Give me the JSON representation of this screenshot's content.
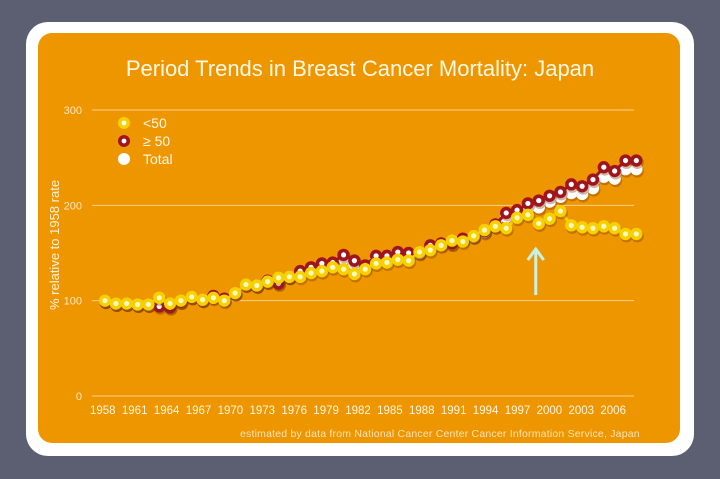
{
  "chart_data": {
    "type": "line",
    "title": "Period Trends in Breast Cancer Mortality: Japan",
    "xlabel": "",
    "ylabel": "% relative to 1958 rate",
    "ylim": [
      0,
      300
    ],
    "yticks": [
      "0",
      "100",
      "200",
      "300"
    ],
    "xticks": [
      "1958",
      "1961",
      "1964",
      "1967",
      "1970",
      "1973",
      "1976",
      "1979",
      "1982",
      "1985",
      "1988",
      "1991",
      "1994",
      "1997",
      "2000",
      "2003",
      "2006"
    ],
    "grid": true,
    "legend_position": "top-left",
    "x": [
      1958,
      1959,
      1960,
      1961,
      1962,
      1963,
      1964,
      1965,
      1966,
      1967,
      1968,
      1969,
      1970,
      1971,
      1972,
      1973,
      1974,
      1975,
      1976,
      1977,
      1978,
      1979,
      1980,
      1981,
      1982,
      1983,
      1984,
      1985,
      1986,
      1987,
      1988,
      1989,
      1990,
      1991,
      1992,
      1993,
      1994,
      1995,
      1996,
      1997,
      1998,
      1999,
      2000,
      2001,
      2002,
      2003,
      2004,
      2005,
      2006,
      2007
    ],
    "series": [
      {
        "name": "<50",
        "color": "#f7d000",
        "values": [
          100,
          97,
          97,
          96,
          96,
          103,
          97,
          100,
          104,
          101,
          103,
          100,
          108,
          117,
          116,
          120,
          124,
          125,
          125,
          129,
          131,
          135,
          133,
          128,
          133,
          139,
          140,
          143,
          142,
          151,
          153,
          158,
          163,
          162,
          168,
          174,
          178,
          176,
          187,
          190,
          181,
          186,
          194,
          179,
          177,
          176,
          178,
          176,
          170,
          170
        ]
      },
      {
        "name": "≥ 50",
        "color": "#a0151d",
        "values": [
          100,
          97,
          97,
          96,
          96,
          94,
          93,
          99,
          104,
          101,
          105,
          102,
          108,
          117,
          116,
          121,
          118,
          125,
          131,
          135,
          139,
          140,
          148,
          142,
          137,
          147,
          147,
          151,
          150,
          151,
          158,
          160,
          160,
          165,
          168,
          173,
          180,
          192,
          195,
          202,
          205,
          210,
          214,
          222,
          220,
          227,
          240,
          236,
          247,
          247
        ]
      },
      {
        "name": "Total",
        "color": "#ffffff",
        "values": [
          100,
          97,
          97,
          96,
          96,
          96,
          94,
          99,
          104,
          101,
          104,
          101,
          108,
          117,
          116,
          120,
          119,
          125,
          129,
          133,
          136,
          138,
          144,
          138,
          136,
          144,
          145,
          148,
          147,
          150,
          156,
          159,
          160,
          164,
          167,
          172,
          178,
          188,
          191,
          197,
          198,
          204,
          209,
          213,
          212,
          218,
          230,
          228,
          238,
          238
        ]
      }
    ],
    "annotations": [
      {
        "type": "arrow",
        "x": 1998,
        "direction": "up"
      }
    ]
  },
  "footer": "estimated by data from National Cancer Center Cancer Information Service, Japan"
}
